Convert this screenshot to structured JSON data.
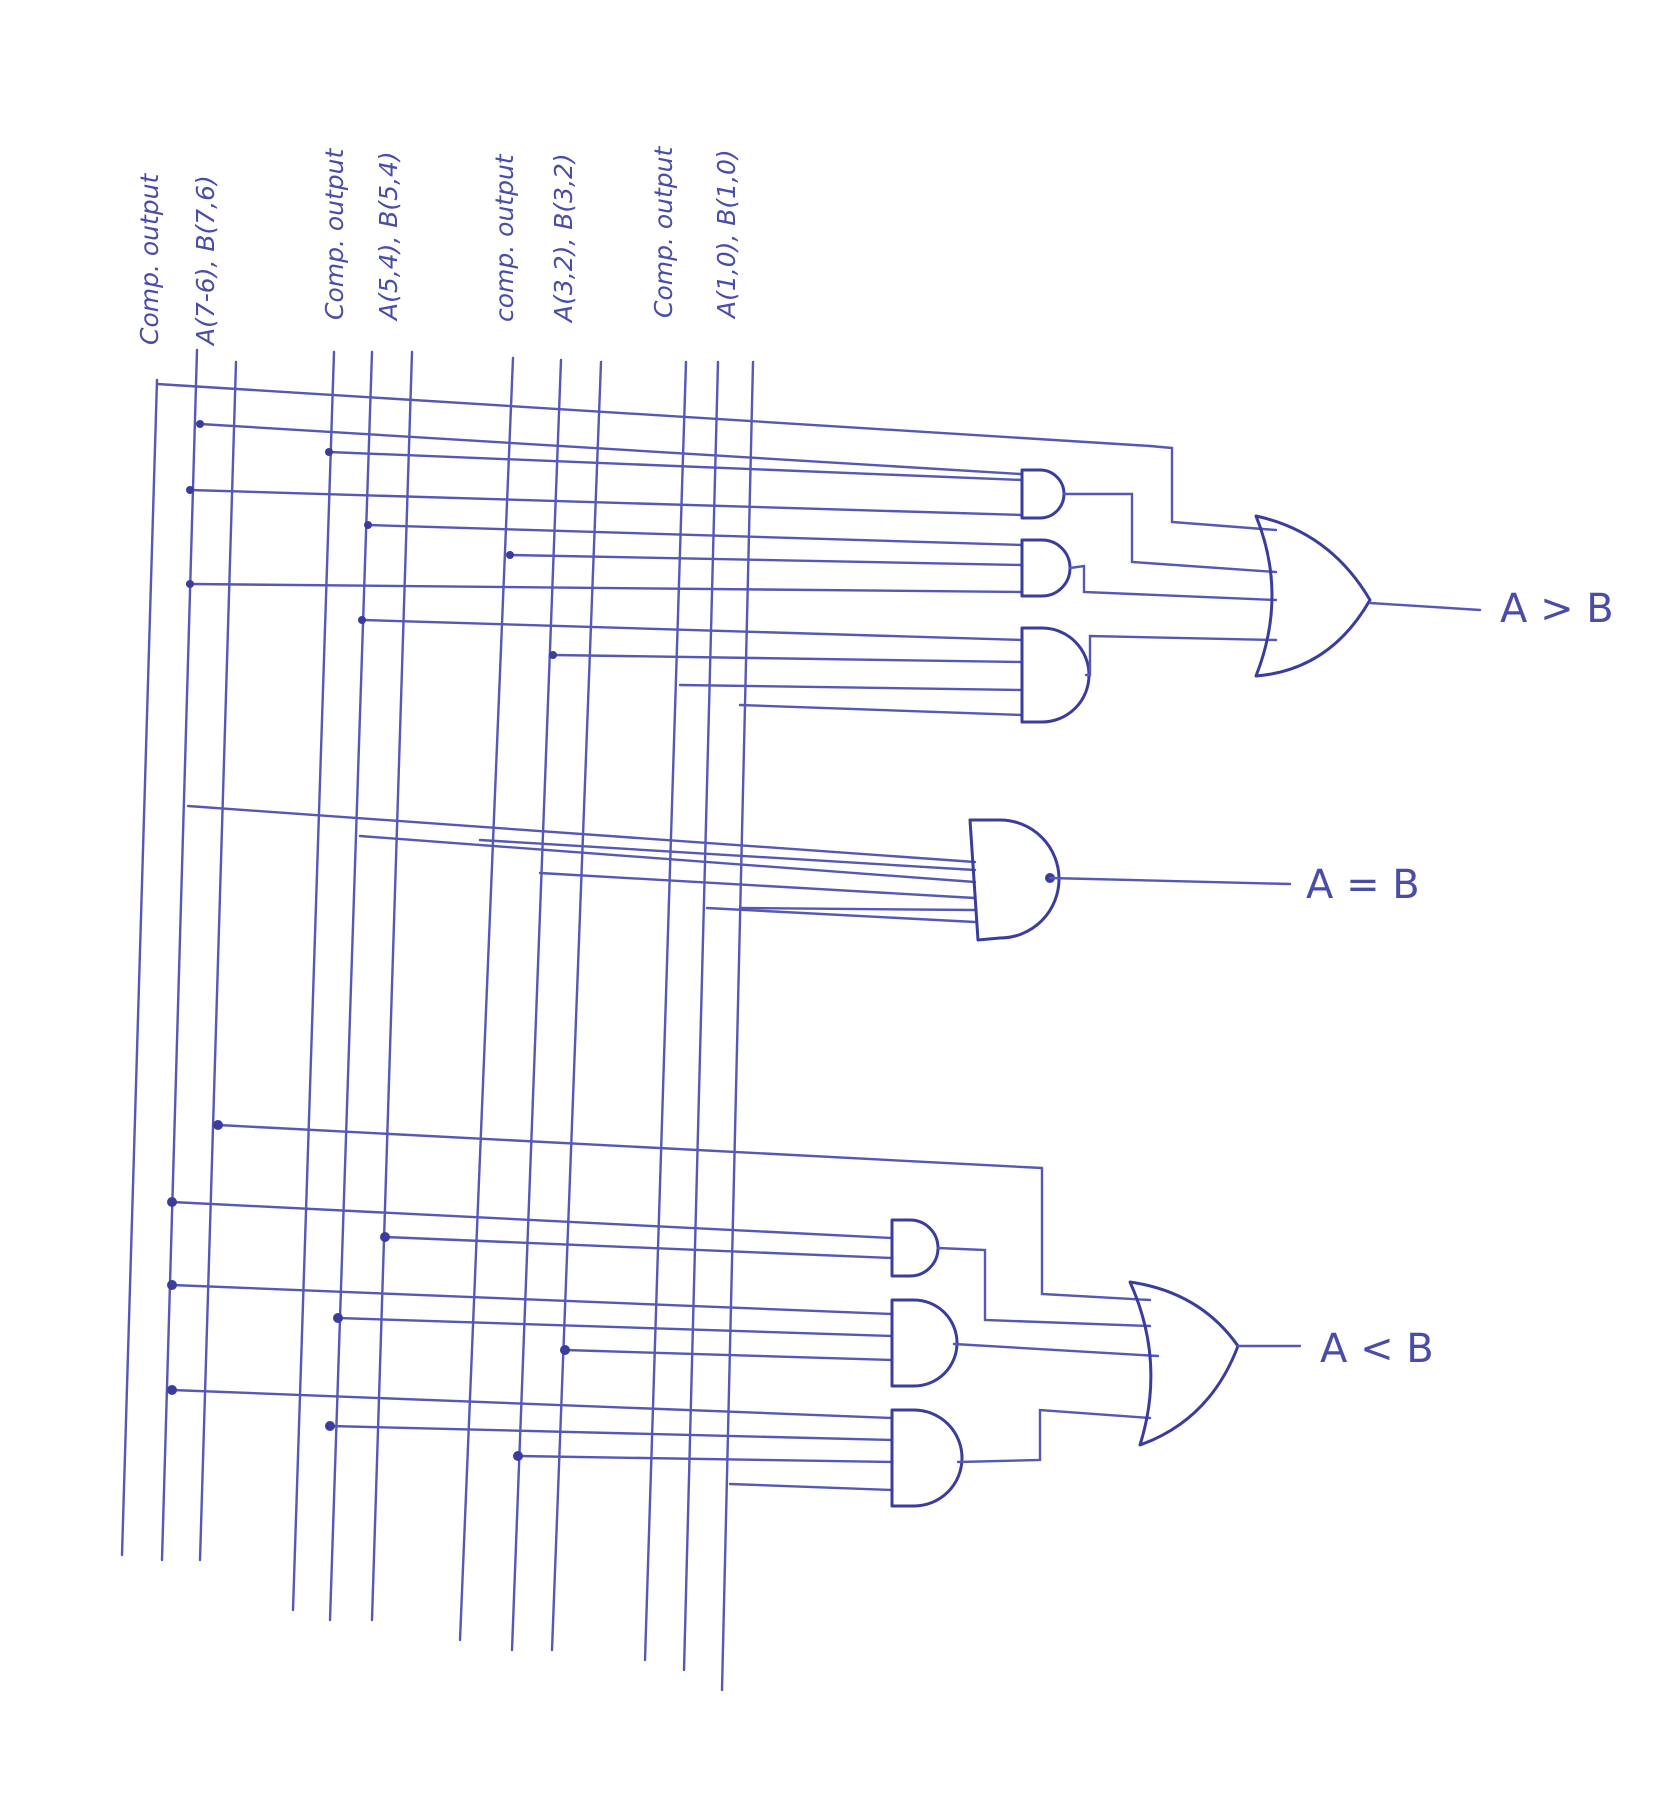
{
  "column_groups": [
    {
      "label_top": "Comp. output",
      "label_bottom": "A(7-6), B(7,6)"
    },
    {
      "label_top": "Comp. output",
      "label_bottom": "A(5,4), B(5,4)"
    },
    {
      "label_top": "comp. output",
      "label_bottom": "A(3,2), B(3,2)"
    },
    {
      "label_top": "Comp. output",
      "label_bottom": "A(1,0), B(1,0)"
    }
  ],
  "outputs": {
    "greater": "A > B",
    "equal": "A = B",
    "less": "A < B"
  },
  "colors": {
    "ink": "#3a3d9e",
    "wire": "#5558b4",
    "paper": "#ffffff"
  }
}
